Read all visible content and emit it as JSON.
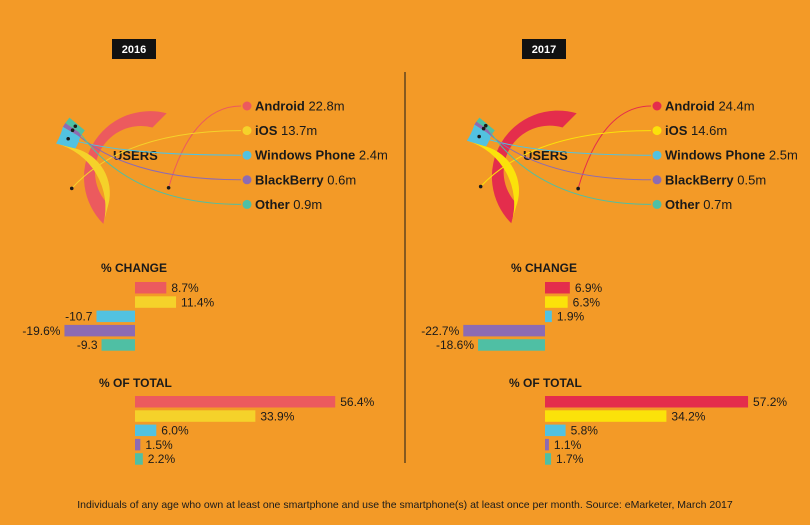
{
  "chart_data": {
    "type": "donut+bar",
    "center_label": "USERS",
    "footnote": "Individuals of any age who own at least one smartphone and use the smartphone(s) at least once per month. Source: eMarketer, March 2017",
    "section_titles": {
      "change": "% CHANGE",
      "total": "% OF TOTAL"
    },
    "categories": [
      "Android",
      "iOS",
      "Windows Phone",
      "BlackBerry",
      "Other"
    ],
    "colors": {
      "2016": [
        "#ec5a5e",
        "#f5d22a",
        "#52c2e0",
        "#8d6bb3",
        "#4fbfa4"
      ],
      "2017": [
        "#e42d4c",
        "#fbe20a",
        "#52c2e0",
        "#8d6bb3",
        "#4fbfa4"
      ]
    },
    "panels": [
      {
        "year": "2016",
        "users_labels": [
          "22.8m",
          "13.7m",
          "2.4m",
          "0.6m",
          "0.9m"
        ],
        "users_m": [
          22.8,
          13.7,
          2.4,
          0.6,
          0.9
        ],
        "pct_change": [
          8.7,
          11.4,
          -10.7,
          -19.6,
          -9.3
        ],
        "pct_change_labels": [
          "8.7%",
          "11.4%",
          "-10.7",
          "-19.6%",
          "-9.3"
        ],
        "pct_total": [
          56.4,
          33.9,
          6.0,
          1.5,
          2.2
        ],
        "pct_total_labels": [
          "56.4%",
          "33.9%",
          "6.0%",
          "1.5%",
          "2.2%"
        ]
      },
      {
        "year": "2017",
        "users_labels": [
          "24.4m",
          "14.6m",
          "2.5m",
          "0.5m",
          "0.7m"
        ],
        "users_m": [
          24.4,
          14.6,
          2.5,
          0.5,
          0.7
        ],
        "pct_change": [
          6.9,
          6.3,
          1.9,
          -22.7,
          -18.6
        ],
        "pct_change_labels": [
          "6.9%",
          "6.3%",
          "1.9%",
          "-22.7%",
          "-18.6%"
        ],
        "pct_total": [
          57.2,
          34.2,
          5.8,
          1.1,
          1.7
        ],
        "pct_total_labels": [
          "57.2%",
          "34.2%",
          "5.8%",
          "1.1%",
          "1.7%"
        ]
      }
    ]
  }
}
